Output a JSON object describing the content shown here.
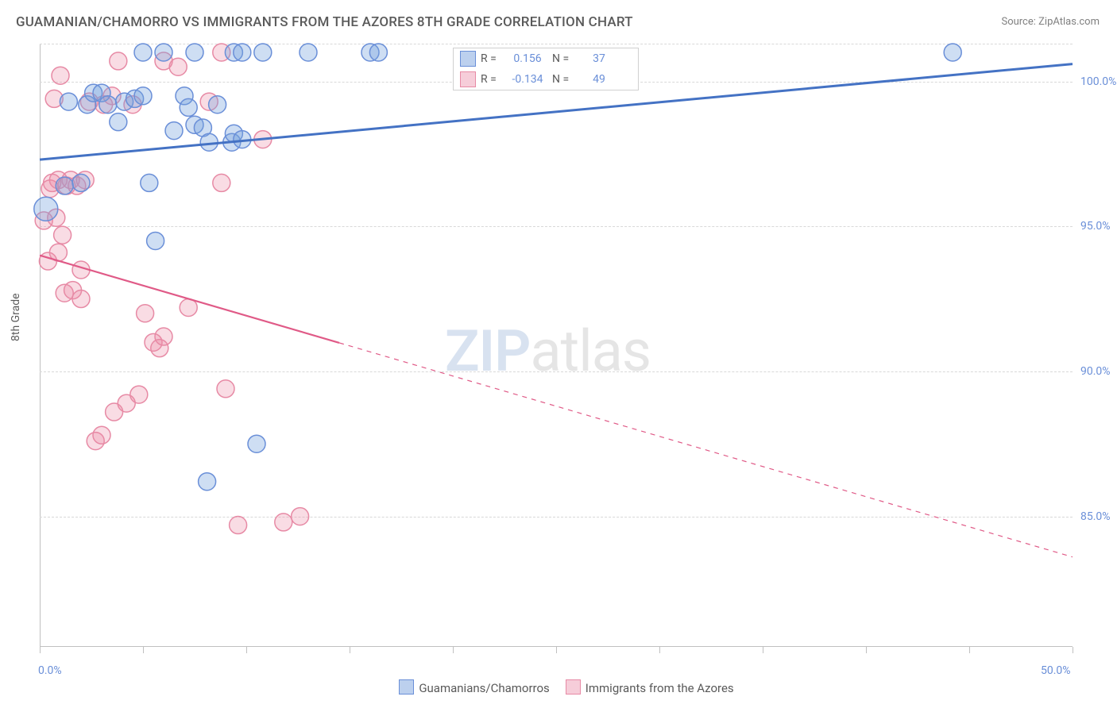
{
  "title": "GUAMANIAN/CHAMORRO VS IMMIGRANTS FROM THE AZORES 8TH GRADE CORRELATION CHART",
  "source_label": "Source: ZipAtlas.com",
  "y_axis_label": "8th Grade",
  "watermark_prefix": "ZIP",
  "watermark_suffix": "atlas",
  "chart": {
    "type": "scatter",
    "xlim": [
      0,
      50
    ],
    "ylim": [
      80.5,
      101.3
    ],
    "x_ticks_positions": [
      0,
      5,
      10,
      15,
      20,
      25,
      30,
      35,
      40,
      45,
      50
    ],
    "x_tick_labels": [
      {
        "pos": 0,
        "label": "0.0%"
      },
      {
        "pos": 50,
        "label": "50.0%"
      }
    ],
    "y_tick_labels": [
      {
        "pos": 85,
        "label": "85.0%"
      },
      {
        "pos": 90,
        "label": "90.0%"
      },
      {
        "pos": 95,
        "label": "95.0%"
      },
      {
        "pos": 100,
        "label": "100.0%"
      }
    ],
    "grid_lines_y": [
      85,
      90,
      95,
      100,
      101.3
    ],
    "background_color": "#ffffff",
    "grid_color": "#d8d8d8",
    "axis_color": "#c0c0c0",
    "series": [
      {
        "name": "Guamanians/Chamorros",
        "color_fill": "rgba(116,160,222,0.35)",
        "color_stroke": "#6a8fd8",
        "marker_radius": 11,
        "legend_swatch_fill": "#bcd0ee",
        "legend_swatch_border": "#6a8fd8",
        "R": "0.156",
        "N": "37",
        "trend": {
          "x1": 0,
          "y1": 97.3,
          "x2": 50,
          "y2": 100.6,
          "solid_until_x": 50,
          "stroke": "#4472c4",
          "width": 3
        },
        "points": [
          [
            0.3,
            95.6,
            15
          ],
          [
            1.2,
            96.4,
            11
          ],
          [
            1.4,
            99.3,
            11
          ],
          [
            2.3,
            99.2,
            11
          ],
          [
            2.0,
            96.5,
            11
          ],
          [
            2.6,
            99.6,
            11
          ],
          [
            3.0,
            99.6,
            11
          ],
          [
            3.3,
            99.2,
            11
          ],
          [
            3.8,
            98.6,
            11
          ],
          [
            4.1,
            99.3,
            11
          ],
          [
            4.6,
            99.4,
            11
          ],
          [
            5.0,
            99.5,
            11
          ],
          [
            5.0,
            101.0,
            11
          ],
          [
            5.3,
            96.5,
            11
          ],
          [
            5.6,
            94.5,
            11
          ],
          [
            6.0,
            101.0,
            11
          ],
          [
            6.5,
            98.3,
            11
          ],
          [
            7.0,
            99.5,
            11
          ],
          [
            7.2,
            99.1,
            11
          ],
          [
            7.5,
            98.5,
            11
          ],
          [
            7.5,
            101.0,
            11
          ],
          [
            7.9,
            98.4,
            11
          ],
          [
            8.2,
            97.9,
            11
          ],
          [
            8.1,
            86.2,
            11
          ],
          [
            8.6,
            99.2,
            11
          ],
          [
            9.3,
            97.9,
            11
          ],
          [
            9.4,
            101.0,
            11
          ],
          [
            9.4,
            98.2,
            11
          ],
          [
            9.8,
            98.0,
            11
          ],
          [
            9.8,
            101.0,
            11
          ],
          [
            10.5,
            87.5,
            11
          ],
          [
            10.8,
            101.0,
            11
          ],
          [
            13.0,
            101.0,
            11
          ],
          [
            16.0,
            101.0,
            11
          ],
          [
            16.4,
            101.0,
            11
          ],
          [
            44.2,
            101.0,
            11
          ]
        ]
      },
      {
        "name": "Immigrants from the Azores",
        "color_fill": "rgba(235,140,165,0.30)",
        "color_stroke": "#e78aa5",
        "marker_radius": 11,
        "legend_swatch_fill": "#f6cdd9",
        "legend_swatch_border": "#e78aa5",
        "R": "-0.134",
        "N": "49",
        "trend": {
          "x1": 0,
          "y1": 94.0,
          "x2": 50,
          "y2": 83.6,
          "solid_until_x": 14.5,
          "stroke": "#e05a87",
          "width": 2.2
        },
        "points": [
          [
            0.2,
            95.2,
            11
          ],
          [
            0.4,
            93.8,
            11
          ],
          [
            0.5,
            96.3,
            11
          ],
          [
            0.6,
            96.5,
            11
          ],
          [
            0.7,
            99.4,
            11
          ],
          [
            0.8,
            95.3,
            11
          ],
          [
            0.9,
            94.1,
            11
          ],
          [
            0.9,
            96.6,
            11
          ],
          [
            1.0,
            100.2,
            11
          ],
          [
            1.1,
            94.7,
            11
          ],
          [
            1.2,
            92.7,
            11
          ],
          [
            1.3,
            96.4,
            11
          ],
          [
            1.5,
            96.6,
            11
          ],
          [
            1.6,
            92.8,
            11
          ],
          [
            1.8,
            96.4,
            11
          ],
          [
            2.0,
            93.5,
            11
          ],
          [
            2.0,
            92.5,
            11
          ],
          [
            2.2,
            96.6,
            11
          ],
          [
            2.4,
            99.3,
            11
          ],
          [
            2.7,
            87.6,
            11
          ],
          [
            3.0,
            87.8,
            11
          ],
          [
            3.1,
            99.2,
            11
          ],
          [
            3.5,
            99.5,
            11
          ],
          [
            3.6,
            88.6,
            11
          ],
          [
            3.8,
            100.7,
            11
          ],
          [
            4.2,
            88.9,
            11
          ],
          [
            4.5,
            99.2,
            11
          ],
          [
            4.8,
            89.2,
            11
          ],
          [
            5.1,
            92.0,
            11
          ],
          [
            5.5,
            91.0,
            11
          ],
          [
            5.8,
            90.8,
            11
          ],
          [
            6.0,
            91.2,
            11
          ],
          [
            6.0,
            100.7,
            11
          ],
          [
            6.7,
            100.5,
            11
          ],
          [
            7.2,
            92.2,
            11
          ],
          [
            8.2,
            99.3,
            11
          ],
          [
            8.8,
            96.5,
            11
          ],
          [
            8.8,
            101.0,
            11
          ],
          [
            9.0,
            89.4,
            11
          ],
          [
            9.6,
            84.7,
            11
          ],
          [
            10.8,
            98.0,
            11
          ],
          [
            11.8,
            84.8,
            11
          ],
          [
            12.6,
            85.0,
            11
          ]
        ]
      }
    ]
  },
  "legend_box": {
    "rows": [
      {
        "swatch_fill": "#bcd0ee",
        "swatch_border": "#6a8fd8",
        "r_label": "R =",
        "r_val": "0.156",
        "n_label": "N =",
        "n_val": "37"
      },
      {
        "swatch_fill": "#f6cdd9",
        "swatch_border": "#e78aa5",
        "r_label": "R =",
        "r_val": "-0.134",
        "n_label": "N =",
        "n_val": "49"
      }
    ]
  },
  "bottom_legend": {
    "items": [
      {
        "swatch_fill": "#bcd0ee",
        "swatch_border": "#6a8fd8",
        "label": "Guamanians/Chamorros"
      },
      {
        "swatch_fill": "#f6cdd9",
        "swatch_border": "#e78aa5",
        "label": "Immigrants from the Azores"
      }
    ]
  }
}
